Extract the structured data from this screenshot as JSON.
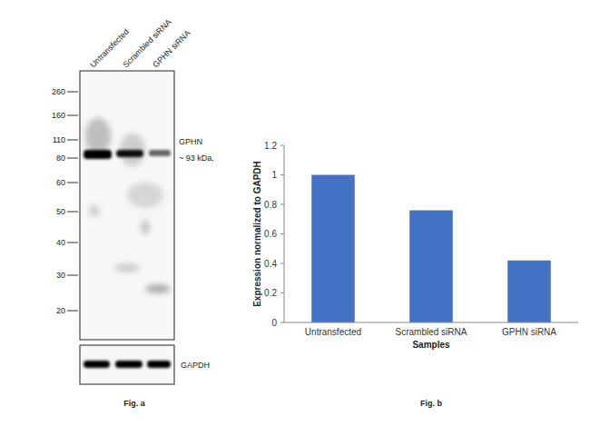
{
  "chart_data": {
    "type": "bar",
    "categories": [
      "Untransfected",
      "Scrambled siRNA",
      "GPHN siRNA"
    ],
    "values": [
      1,
      0.76,
      0.42
    ],
    "color": "#4472c4",
    "ylim": [
      0,
      1.2
    ],
    "yticks": [
      0,
      0.2,
      0.4,
      0.6,
      0.8,
      1,
      1.2
    ],
    "grid": false,
    "x_label": "Samples",
    "y_label": "Expression normalized to GAPDH"
  },
  "blot": {
    "lanes": [
      "Untransfected",
      "Scrambled siRNA",
      "GPHN siRNA"
    ],
    "markers": [
      260,
      160,
      110,
      80,
      60,
      50,
      40,
      30,
      20
    ],
    "target": "GPHN",
    "size": "~ 93 kDa,",
    "loading_control": "GAPDH"
  },
  "figure": {
    "captions": [
      "Fig. a",
      "Fig. b"
    ]
  }
}
